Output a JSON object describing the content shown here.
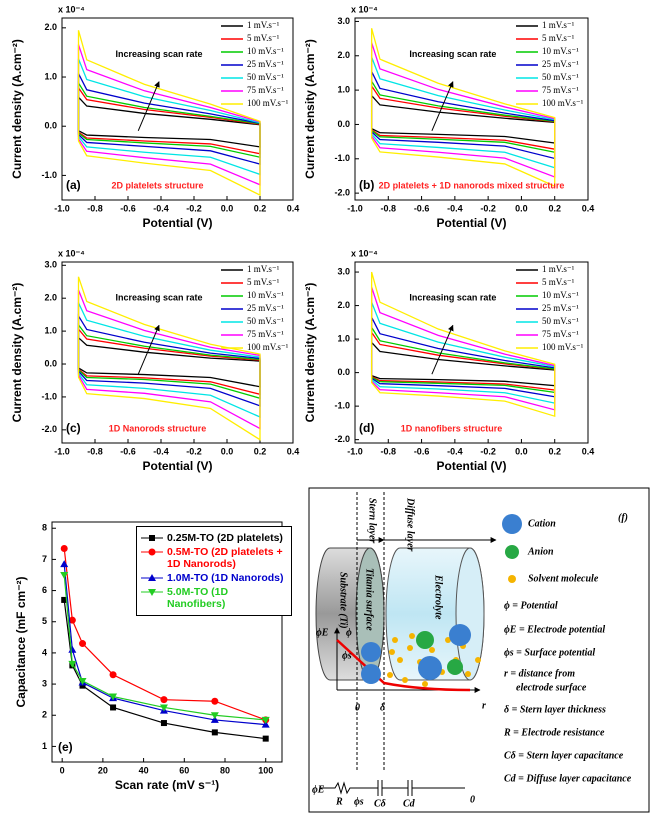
{
  "chart_data": [
    {
      "type": "loop",
      "panel_label": "(a)",
      "annotation": "2D platelets structure",
      "arrow_label": "Increasing scan rate",
      "x_label": "Potential (V)",
      "y_label": "Current density (A.cm⁻²)",
      "y_exponent": "x 10⁻⁴",
      "xlim": [
        -1.0,
        0.4
      ],
      "ylim": [
        -1.5,
        2.2
      ],
      "xticks": [
        {
          "value": -1,
          "label": "-1.0"
        },
        -0.8,
        -0.6,
        -0.4,
        -0.2,
        {
          "value": 0,
          "label": "0.0"
        },
        0.2,
        0.4
      ],
      "yticks": [
        {
          "value": 2,
          "label": "2.0"
        },
        {
          "value": 1,
          "label": "1.0"
        },
        {
          "value": 0,
          "label": "0.0"
        },
        {
          "value": -1,
          "label": "-1.0"
        }
      ],
      "x": [
        -0.9,
        -0.85,
        -0.5,
        -0.1,
        0.2
      ],
      "series": [
        {
          "name": "1 mV.s⁻¹",
          "color": "#000000",
          "upper": [
            0.59,
            0.41,
            0.26,
            0.14,
            0.03
          ],
          "lower": [
            -0.09,
            -0.18,
            -0.23,
            -0.27,
            -0.42
          ]
        },
        {
          "name": "5 mV.s⁻¹",
          "color": "#ff0000",
          "upper": [
            0.78,
            0.54,
            0.34,
            0.18,
            0.04
          ],
          "lower": [
            -0.12,
            -0.24,
            -0.3,
            -0.36,
            -0.56
          ]
        },
        {
          "name": "10 mV.s⁻¹",
          "color": "#00cc00",
          "upper": [
            0.88,
            0.61,
            0.38,
            0.2,
            0.05
          ],
          "lower": [
            -0.14,
            -0.27,
            -0.34,
            -0.41,
            -0.63
          ]
        },
        {
          "name": "25 mV.s⁻¹",
          "color": "#0000cc",
          "upper": [
            1.07,
            0.74,
            0.47,
            0.25,
            0.06
          ],
          "lower": [
            -0.17,
            -0.33,
            -0.41,
            -0.5,
            -0.77
          ]
        },
        {
          "name": "50 mV.s⁻¹",
          "color": "#00e5e5",
          "upper": [
            1.37,
            0.95,
            0.6,
            0.32,
            0.07
          ],
          "lower": [
            -0.21,
            -0.42,
            -0.53,
            -0.63,
            -0.98
          ]
        },
        {
          "name": "75 mV.s⁻¹",
          "color": "#ff00ff",
          "upper": [
            1.66,
            1.15,
            0.72,
            0.38,
            0.09
          ],
          "lower": [
            -0.26,
            -0.51,
            -0.64,
            -0.77,
            -1.19
          ]
        },
        {
          "name": "100 mV.s⁻¹",
          "color": "#ffee00",
          "upper": [
            1.95,
            1.35,
            0.85,
            0.45,
            0.1
          ],
          "lower": [
            -0.3,
            -0.6,
            -0.75,
            -0.9,
            -1.4
          ]
        }
      ]
    },
    {
      "type": "loop",
      "panel_label": "(b)",
      "annotation": "2D platelets + 1D nanorods mixed structure",
      "arrow_label": "Increasing scan rate",
      "x_label": "Potential (V)",
      "y_label": "Current density (A.cm⁻²)",
      "y_exponent": "x 10⁻⁴",
      "xlim": [
        -1.0,
        0.4
      ],
      "ylim": [
        -2.2,
        3.1
      ],
      "xticks": [
        {
          "value": -1,
          "label": "-1.0"
        },
        -0.8,
        -0.6,
        -0.4,
        -0.2,
        {
          "value": 0,
          "label": "0.0"
        },
        0.2,
        0.4
      ],
      "yticks": [
        {
          "value": 3,
          "label": "3.0"
        },
        {
          "value": 2,
          "label": "2.0"
        },
        {
          "value": 1,
          "label": "1.0"
        },
        {
          "value": 0,
          "label": "0.0"
        },
        {
          "value": -1,
          "label": "-1.0"
        },
        {
          "value": -2,
          "label": "-2.0"
        }
      ],
      "x": [
        -0.9,
        -0.85,
        -0.5,
        -0.1,
        0.2
      ],
      "series": [
        {
          "name": "1 mV.s⁻¹",
          "color": "#000000",
          "upper": [
            0.84,
            0.57,
            0.36,
            0.18,
            0.06
          ],
          "lower": [
            -0.12,
            -0.24,
            -0.29,
            -0.35,
            -0.54
          ]
        },
        {
          "name": "5 mV.s⁻¹",
          "color": "#ff0000",
          "upper": [
            1.12,
            0.76,
            0.48,
            0.24,
            0.08
          ],
          "lower": [
            -0.16,
            -0.32,
            -0.38,
            -0.46,
            -0.72
          ]
        },
        {
          "name": "10 mV.s⁻¹",
          "color": "#00cc00",
          "upper": [
            1.26,
            0.86,
            0.54,
            0.27,
            0.09
          ],
          "lower": [
            -0.18,
            -0.36,
            -0.43,
            -0.52,
            -0.81
          ]
        },
        {
          "name": "25 mV.s⁻¹",
          "color": "#0000cc",
          "upper": [
            1.54,
            1.05,
            0.66,
            0.33,
            0.11
          ],
          "lower": [
            -0.22,
            -0.44,
            -0.52,
            -0.63,
            -0.99
          ]
        },
        {
          "name": "50 mV.s⁻¹",
          "color": "#00e5e5",
          "upper": [
            1.96,
            1.33,
            0.84,
            0.42,
            0.14
          ],
          "lower": [
            -0.28,
            -0.56,
            -0.67,
            -0.81,
            -1.26
          ]
        },
        {
          "name": "75 mV.s⁻¹",
          "color": "#ff00ff",
          "upper": [
            2.38,
            1.62,
            1.02,
            0.51,
            0.17
          ],
          "lower": [
            -0.34,
            -0.68,
            -0.81,
            -0.98,
            -1.53
          ]
        },
        {
          "name": "100 mV.s⁻¹",
          "color": "#ffee00",
          "upper": [
            2.8,
            1.9,
            1.2,
            0.6,
            0.2
          ],
          "lower": [
            -0.4,
            -0.8,
            -0.95,
            -1.15,
            -1.8
          ]
        }
      ]
    },
    {
      "type": "loop",
      "panel_label": "(c)",
      "annotation": "1D Nanorods structure",
      "arrow_label": "Increasing scan rate",
      "x_label": "Potential (V)",
      "y_label": "Current density (A.cm⁻²)",
      "y_exponent": "x 10⁻⁴",
      "xlim": [
        -1.0,
        0.4
      ],
      "ylim": [
        -2.4,
        3.1
      ],
      "xticks": [
        {
          "value": -1,
          "label": "-1.0"
        },
        -0.8,
        -0.6,
        -0.4,
        -0.2,
        {
          "value": 0,
          "label": "0.0"
        },
        0.2,
        0.4
      ],
      "yticks": [
        {
          "value": 3,
          "label": "3.0"
        },
        {
          "value": 2,
          "label": "2.0"
        },
        {
          "value": 1,
          "label": "1.0"
        },
        {
          "value": 0,
          "label": "0.0"
        },
        {
          "value": -1,
          "label": "-1.0"
        },
        {
          "value": -2,
          "label": "-2.0"
        }
      ],
      "x": [
        -0.9,
        -0.85,
        -0.5,
        -0.1,
        0.2
      ],
      "series": [
        {
          "name": "1 mV.s⁻¹",
          "color": "#000000",
          "upper": [
            0.8,
            0.57,
            0.36,
            0.18,
            0.09
          ],
          "lower": [
            -0.12,
            -0.27,
            -0.32,
            -0.41,
            -0.69
          ]
        },
        {
          "name": "5 mV.s⁻¹",
          "color": "#ff0000",
          "upper": [
            1.06,
            0.76,
            0.48,
            0.24,
            0.12
          ],
          "lower": [
            -0.16,
            -0.36,
            -0.42,
            -0.54,
            -0.92
          ]
        },
        {
          "name": "10 mV.s⁻¹",
          "color": "#00cc00",
          "upper": [
            1.19,
            0.86,
            0.54,
            0.27,
            0.14
          ],
          "lower": [
            -0.18,
            -0.41,
            -0.47,
            -0.61,
            -1.04
          ]
        },
        {
          "name": "25 mV.s⁻¹",
          "color": "#0000cc",
          "upper": [
            1.46,
            1.05,
            0.66,
            0.33,
            0.17
          ],
          "lower": [
            -0.22,
            -0.5,
            -0.58,
            -0.74,
            -1.27
          ]
        },
        {
          "name": "50 mV.s⁻¹",
          "color": "#00e5e5",
          "upper": [
            1.86,
            1.33,
            0.84,
            0.42,
            0.21
          ],
          "lower": [
            -0.28,
            -0.63,
            -0.74,
            -0.95,
            -1.61
          ]
        },
        {
          "name": "75 mV.s⁻¹",
          "color": "#ff00ff",
          "upper": [
            2.25,
            1.62,
            1.02,
            0.51,
            0.26
          ],
          "lower": [
            -0.34,
            -0.77,
            -0.89,
            -1.15,
            -1.96
          ]
        },
        {
          "name": "100 mV.s⁻¹",
          "color": "#ffee00",
          "upper": [
            2.65,
            1.9,
            1.2,
            0.6,
            0.3
          ],
          "lower": [
            -0.4,
            -0.9,
            -1.05,
            -1.35,
            -2.3
          ]
        }
      ]
    },
    {
      "type": "loop",
      "panel_label": "(d)",
      "annotation": "1D nanofibers structure",
      "arrow_label": "Increasing scan rate",
      "x_label": "Potential (V)",
      "y_label": "Current density (A.cm⁻²)",
      "y_exponent": "x 10⁻⁴",
      "xlim": [
        -1.0,
        0.4
      ],
      "ylim": [
        -2.1,
        3.3
      ],
      "xticks": [
        {
          "value": -1,
          "label": "-1.0"
        },
        -0.8,
        -0.6,
        -0.4,
        -0.2,
        {
          "value": 0,
          "label": "0.0"
        },
        0.2,
        0.4
      ],
      "yticks": [
        {
          "value": 3,
          "label": "3.0"
        },
        {
          "value": 2,
          "label": "2.0"
        },
        {
          "value": 1,
          "label": "1.0"
        },
        {
          "value": 0,
          "label": "0.0"
        },
        {
          "value": -1,
          "label": "-1.0"
        },
        {
          "value": -2,
          "label": "-2.0"
        }
      ],
      "x": [
        -0.9,
        -0.85,
        -0.5,
        -0.1,
        0.2
      ],
      "series": [
        {
          "name": "1 mV.s⁻¹",
          "color": "#000000",
          "upper": [
            0.9,
            0.63,
            0.39,
            0.2,
            0.08
          ],
          "lower": [
            -0.09,
            -0.18,
            -0.21,
            -0.26,
            -0.39
          ]
        },
        {
          "name": "5 mV.s⁻¹",
          "color": "#ff0000",
          "upper": [
            1.2,
            0.84,
            0.52,
            0.26,
            0.1
          ],
          "lower": [
            -0.12,
            -0.24,
            -0.28,
            -0.34,
            -0.52
          ]
        },
        {
          "name": "10 mV.s⁻¹",
          "color": "#00cc00",
          "upper": [
            1.35,
            0.95,
            0.59,
            0.29,
            0.11
          ],
          "lower": [
            -0.14,
            -0.27,
            -0.32,
            -0.38,
            -0.59
          ]
        },
        {
          "name": "25 mV.s⁻¹",
          "color": "#0000cc",
          "upper": [
            1.65,
            1.16,
            0.72,
            0.36,
            0.14
          ],
          "lower": [
            -0.17,
            -0.33,
            -0.39,
            -0.47,
            -0.72
          ]
        },
        {
          "name": "50 mV.s⁻¹",
          "color": "#00e5e5",
          "upper": [
            2.1,
            1.47,
            0.91,
            0.46,
            0.18
          ],
          "lower": [
            -0.21,
            -0.42,
            -0.49,
            -0.6,
            -0.91
          ]
        },
        {
          "name": "75 mV.s⁻¹",
          "color": "#ff00ff",
          "upper": [
            2.55,
            1.79,
            1.11,
            0.55,
            0.21
          ],
          "lower": [
            -0.26,
            -0.51,
            -0.6,
            -0.72,
            -1.11
          ]
        },
        {
          "name": "100 mV.s⁻¹",
          "color": "#ffee00",
          "upper": [
            3.0,
            2.1,
            1.3,
            0.65,
            0.25
          ],
          "lower": [
            -0.3,
            -0.6,
            -0.7,
            -0.85,
            -1.3
          ]
        }
      ]
    },
    {
      "type": "line",
      "panel_label": "(e)",
      "x_label": "Scan rate (mV s⁻¹)",
      "y_label": "Capacitance (mF cm⁻²)",
      "xlim": [
        -5,
        108
      ],
      "ylim": [
        0.5,
        8.2
      ],
      "xticks": [
        0,
        20,
        40,
        60,
        80,
        100
      ],
      "yticks": [
        1,
        2,
        3,
        4,
        5,
        6,
        7,
        8
      ],
      "x": [
        1,
        5,
        10,
        25,
        50,
        75,
        100
      ],
      "series": [
        {
          "name": "0.25M-TO (2D platelets)",
          "color": "#000000",
          "marker": "square",
          "values": [
            5.7,
            3.6,
            2.95,
            2.25,
            1.75,
            1.45,
            1.25
          ]
        },
        {
          "name": "0.5M-TO (2D platelets + 1D Nanorods)",
          "color": "#ff0000",
          "marker": "circle",
          "values": [
            7.35,
            5.05,
            4.3,
            3.3,
            2.5,
            2.45,
            1.85
          ]
        },
        {
          "name": "1.0M-TO (1D Nanorods)",
          "color": "#0000cc",
          "marker": "triangle",
          "values": [
            6.85,
            4.1,
            3.05,
            2.55,
            2.15,
            1.85,
            1.7
          ]
        },
        {
          "name": "5.0M-TO (1D Nanofibers)",
          "color": "#22cc22",
          "marker": "triangle-down",
          "values": [
            6.5,
            3.65,
            3.1,
            2.6,
            2.25,
            2.0,
            1.85
          ]
        }
      ]
    }
  ],
  "diagram": {
    "label": "(f)",
    "stern": "Stern layer",
    "diffuse": "Diffuse layer",
    "substrate": "Substrate (Ti)",
    "titania": "Titania surface",
    "electrolyte": "Electrolyte",
    "legend": [
      "Cation",
      "Anion",
      "Solvent molecule",
      "ϕ = Potential",
      "ϕE = Electrode potential",
      "ϕs = Surface potential",
      "r = distance from",
      "electrode surface",
      "δ = Stern layer thickness",
      "R = Electrode resistance",
      "Cδ = Stern layer capacitance",
      "Cd = Diffuse layer capacitance"
    ],
    "graph": {
      "phi_e": "ϕE",
      "phi": "ϕ",
      "phi_s": "ϕs",
      "origin": "0",
      "delta": "δ",
      "r": "r"
    },
    "circuit": {
      "phi_e": "ϕE",
      "R": "R",
      "phi_s": "ϕs",
      "c_stern": "Cδ",
      "c_diffuse": "Cd",
      "end": "0"
    }
  }
}
